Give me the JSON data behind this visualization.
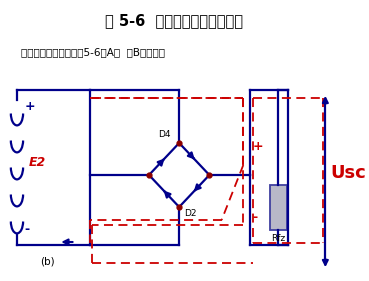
{
  "title": "图 5-6  桥式整流电路工作原理",
  "subtitle": "上述工作状态分别如图5-6（A）  （B）所示。",
  "bg_color": "#ffffff",
  "title_color": "#000000",
  "subtitle_color": "#000000",
  "blue_color": "#00008B",
  "red_color": "#CC0000",
  "label_b": "(b)",
  "label_E2": "E2",
  "label_D4": "D4",
  "label_D2": "D2",
  "label_Usc": "Usc",
  "label_Rfz": "Rfz",
  "label_plus": "+",
  "label_minus": "-"
}
